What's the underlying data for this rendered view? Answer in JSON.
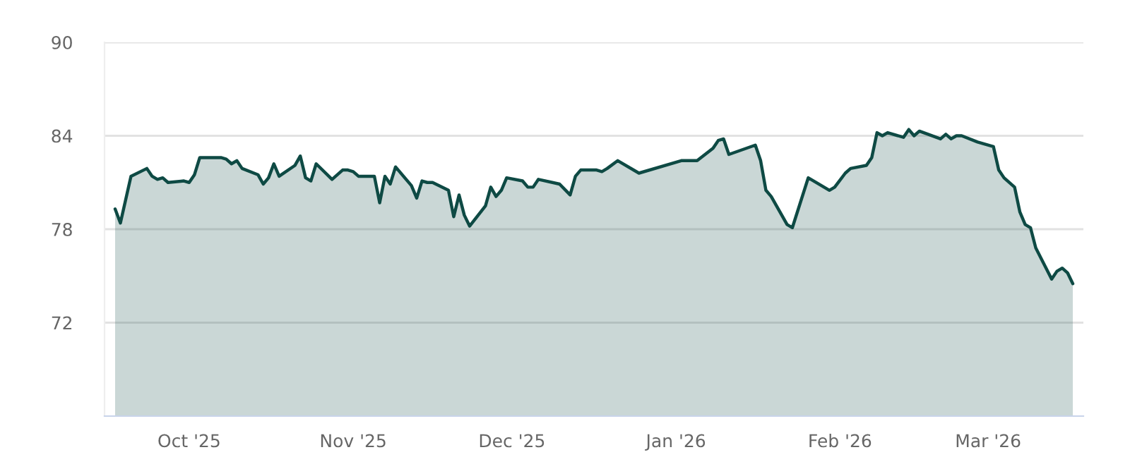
{
  "chart_data": {
    "type": "area",
    "x": [
      "2025-09-17",
      "2025-09-18",
      "2025-09-20",
      "2025-09-23",
      "2025-09-24",
      "2025-09-25",
      "2025-09-26",
      "2025-09-27",
      "2025-09-30",
      "2025-10-01",
      "2025-10-02",
      "2025-10-03",
      "2025-10-07",
      "2025-10-08",
      "2025-10-09",
      "2025-10-10",
      "2025-10-11",
      "2025-10-14",
      "2025-10-15",
      "2025-10-16",
      "2025-10-17",
      "2025-10-18",
      "2025-10-21",
      "2025-10-22",
      "2025-10-23",
      "2025-10-24",
      "2025-10-25",
      "2025-10-28",
      "2025-10-30",
      "2025-10-31",
      "2025-11-01",
      "2025-11-02",
      "2025-11-05",
      "2025-11-06",
      "2025-11-07",
      "2025-11-08",
      "2025-11-09",
      "2025-11-12",
      "2025-11-13",
      "2025-11-14",
      "2025-11-15",
      "2025-11-16",
      "2025-11-19",
      "2025-11-20",
      "2025-11-21",
      "2025-11-22",
      "2025-11-23",
      "2025-11-26",
      "2025-11-27",
      "2025-11-28",
      "2025-11-29",
      "2025-11-30",
      "2025-12-03",
      "2025-12-04",
      "2025-12-05",
      "2025-12-06",
      "2025-12-10",
      "2025-12-12",
      "2025-12-13",
      "2025-12-14",
      "2025-12-17",
      "2025-12-18",
      "2025-12-19",
      "2025-12-21",
      "2025-12-25",
      "2026-01-02",
      "2026-01-05",
      "2026-01-08",
      "2026-01-09",
      "2026-01-10",
      "2026-01-11",
      "2026-01-16",
      "2026-01-17",
      "2026-01-18",
      "2026-01-19",
      "2026-01-22",
      "2026-01-23",
      "2026-01-26",
      "2026-01-30",
      "2026-01-31",
      "2026-02-02",
      "2026-02-03",
      "2026-02-06",
      "2026-02-07",
      "2026-02-08",
      "2026-02-09",
      "2026-02-10",
      "2026-02-13",
      "2026-02-14",
      "2026-02-15",
      "2026-02-16",
      "2026-02-20",
      "2026-02-21",
      "2026-02-22",
      "2026-02-23",
      "2026-02-24",
      "2026-02-27",
      "2026-03-02",
      "2026-03-03",
      "2026-03-04",
      "2026-03-06",
      "2026-03-07",
      "2026-03-08",
      "2026-03-09",
      "2026-03-10",
      "2026-03-13",
      "2026-03-14",
      "2026-03-15",
      "2026-03-16",
      "2026-03-17"
    ],
    "series": [
      {
        "color": "#0e4a44",
        "values": [
          79.3,
          78.4,
          81.4,
          81.9,
          81.4,
          81.2,
          81.3,
          81.0,
          81.1,
          81.0,
          81.5,
          82.6,
          82.6,
          82.5,
          82.2,
          82.4,
          81.9,
          81.5,
          80.9,
          81.3,
          82.2,
          81.4,
          82.1,
          82.7,
          81.3,
          81.1,
          82.2,
          81.2,
          81.8,
          81.8,
          81.7,
          81.4,
          81.4,
          79.7,
          81.4,
          80.9,
          82.0,
          80.8,
          80.0,
          81.1,
          81.0,
          81.0,
          80.5,
          78.8,
          80.2,
          78.9,
          78.2,
          79.5,
          80.7,
          80.1,
          80.5,
          81.3,
          81.1,
          80.7,
          80.7,
          81.2,
          80.9,
          80.2,
          81.4,
          81.8,
          81.8,
          81.7,
          81.9,
          82.4,
          81.6,
          82.4,
          82.4,
          83.2,
          83.7,
          83.8,
          82.8,
          83.4,
          82.4,
          80.5,
          80.1,
          78.3,
          78.1,
          81.3,
          80.5,
          80.7,
          81.6,
          81.9,
          82.1,
          82.6,
          84.2,
          84.0,
          84.2,
          83.9,
          84.4,
          84.0,
          84.3,
          83.8,
          84.1,
          83.8,
          84.0,
          84.0,
          83.6,
          83.3,
          81.8,
          81.3,
          80.7,
          79.1,
          78.3,
          78.1,
          76.8,
          74.8,
          75.3,
          75.5,
          75.2,
          74.5
        ]
      }
    ],
    "xlim": [
      "2025-09-15",
      "2026-03-19"
    ],
    "xticks": [
      {
        "value": "2025-10-01",
        "label": "Oct '25"
      },
      {
        "value": "2025-11-01",
        "label": "Nov '25"
      },
      {
        "value": "2025-12-01",
        "label": "Dec '25"
      },
      {
        "value": "2026-01-01",
        "label": "Jan '26"
      },
      {
        "value": "2026-02-01",
        "label": "Feb '26"
      },
      {
        "value": "2026-03-01",
        "label": "Mar '26"
      }
    ],
    "ylim": [
      66,
      90
    ],
    "yticks": [
      72,
      78,
      84,
      90
    ],
    "grid": "y",
    "legend": false,
    "marker": "none",
    "line_style": "solid"
  }
}
